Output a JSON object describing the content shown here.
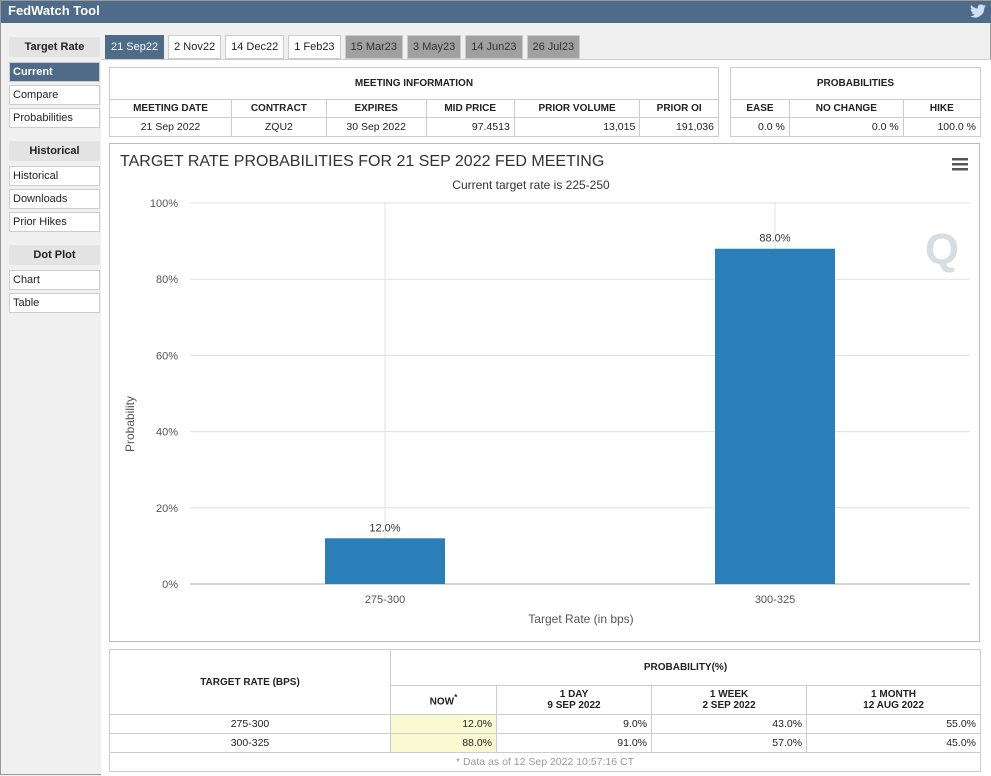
{
  "app": {
    "title": "FedWatch Tool",
    "twitter_icon": "twitter-icon"
  },
  "sidebar": {
    "sections": [
      {
        "title": "Target Rate",
        "items": [
          "Current",
          "Compare",
          "Probabilities"
        ]
      },
      {
        "title": "Historical",
        "items": [
          "Historical",
          "Downloads",
          "Prior Hikes"
        ]
      },
      {
        "title": "Dot Plot",
        "items": [
          "Chart",
          "Table"
        ]
      }
    ]
  },
  "tabs": [
    "21 Sep22",
    "2 Nov22",
    "14 Dec22",
    "1 Feb23",
    "15 Mar23",
    "3 May23",
    "14 Jun23",
    "26 Jul23"
  ],
  "meeting": {
    "title": "MEETING INFORMATION",
    "headers": [
      "MEETING DATE",
      "CONTRACT",
      "EXPIRES",
      "MID PRICE",
      "PRIOR VOLUME",
      "PRIOR OI"
    ],
    "values": [
      "21 Sep 2022",
      "ZQU2",
      "30 Sep 2022",
      "97.4513",
      "13,015",
      "191,036"
    ]
  },
  "probabilities": {
    "title": "PROBABILITIES",
    "headers": [
      "EASE",
      "NO CHANGE",
      "HIKE"
    ],
    "values": [
      "0.0 %",
      "0.0 %",
      "100.0 %"
    ]
  },
  "chart_data": {
    "type": "bar",
    "title": "TARGET RATE PROBABILITIES FOR 21 SEP 2022 FED MEETING",
    "subtitle": "Current target rate is 225-250",
    "categories": [
      "275-300",
      "300-325"
    ],
    "values": [
      12.0,
      88.0
    ],
    "data_labels": [
      "12.0%",
      "88.0%"
    ],
    "xlabel": "Target Rate (in bps)",
    "ylabel": "Probability",
    "ylim": [
      0,
      100
    ],
    "yticks": [
      "0%",
      "20%",
      "40%",
      "60%",
      "80%",
      "100%"
    ],
    "color": "#2b7fb8"
  },
  "bottom": {
    "col1": "TARGET RATE (BPS)",
    "group": "PROBABILITY(%)",
    "now": "NOW",
    "now_mark": "*",
    "cols": [
      [
        "1 DAY",
        "9 SEP 2022"
      ],
      [
        "1 WEEK",
        "2 SEP 2022"
      ],
      [
        "1 MONTH",
        "12 AUG 2022"
      ]
    ],
    "rows": [
      [
        "275-300",
        "12.0%",
        "9.0%",
        "43.0%",
        "55.0%"
      ],
      [
        "300-325",
        "88.0%",
        "91.0%",
        "57.0%",
        "45.0%"
      ]
    ],
    "footnote": "* Data as of 12 Sep 2022 10:57:16 CT"
  }
}
